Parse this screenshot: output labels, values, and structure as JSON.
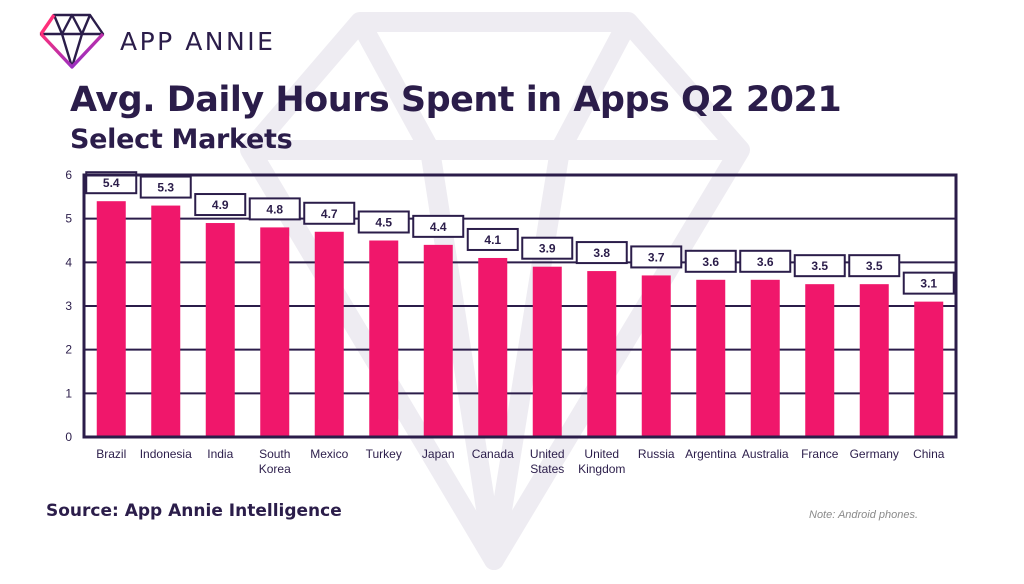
{
  "brand": {
    "name": "APP ANNIE"
  },
  "colors": {
    "bar": "#f0176b",
    "frame": "#2b1d4a",
    "text": "#2b1d4a",
    "watermark": "#eceaf1"
  },
  "footer": {
    "source": "Source: App Annie Intelligence",
    "note": "Note: Android phones."
  },
  "chart_data": {
    "type": "bar",
    "title": "Avg. Daily Hours Spent in Apps Q2 2021",
    "subtitle": "Select Markets",
    "categories": [
      [
        "Brazil"
      ],
      [
        "Indonesia"
      ],
      [
        "India"
      ],
      [
        "South",
        "Korea"
      ],
      [
        "Mexico"
      ],
      [
        "Turkey"
      ],
      [
        "Japan"
      ],
      [
        "Canada"
      ],
      [
        "United",
        "States"
      ],
      [
        "United",
        "Kingdom"
      ],
      [
        "Russia"
      ],
      [
        "Argentina"
      ],
      [
        "Australia"
      ],
      [
        "France"
      ],
      [
        "Germany"
      ],
      [
        "China"
      ]
    ],
    "values": [
      5.4,
      5.3,
      4.9,
      4.8,
      4.7,
      4.5,
      4.4,
      4.1,
      3.9,
      3.8,
      3.7,
      3.6,
      3.6,
      3.5,
      3.5,
      3.1
    ],
    "data_labels": [
      "5.4",
      "5.3",
      "4.9",
      "4.8",
      "4.7",
      "4.5",
      "4.4",
      "4.1",
      "3.9",
      "3.8",
      "3.7",
      "3.6",
      "3.6",
      "3.5",
      "3.5",
      "3.1"
    ],
    "ylim": [
      0,
      6
    ],
    "yticks": [
      "0",
      "1",
      "2",
      "3",
      "4",
      "5",
      "6"
    ],
    "grid": true,
    "legend": "none"
  }
}
